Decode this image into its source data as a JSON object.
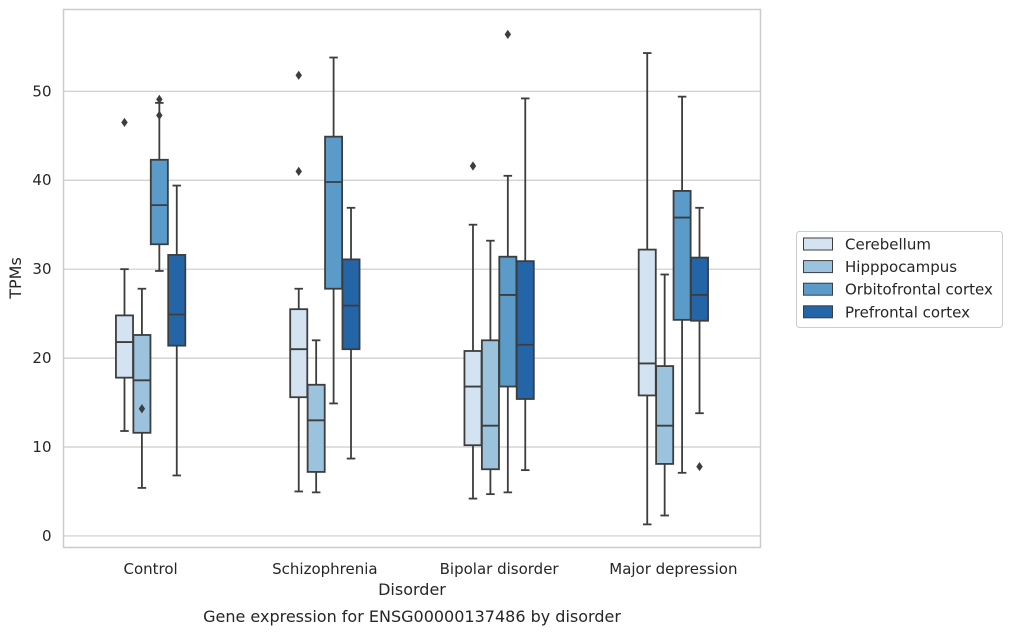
{
  "chart_data": {
    "type": "boxplot",
    "title": "",
    "caption": "Gene expression for ENSG00000137486 by disorder",
    "xlabel": "Disorder",
    "ylabel": "TPMs",
    "ylim": [
      -1.3,
      59.2
    ],
    "yticks": [
      0,
      10,
      20,
      30,
      40,
      50
    ],
    "grid": "horizontal",
    "legend_position": "right",
    "categories": [
      "Control",
      "Schizophrenia",
      "Bipolar disorder",
      "Major depression"
    ],
    "series": [
      {
        "name": "Cerebellum",
        "color": "#d3e3f2",
        "boxes": [
          {
            "whislo": 11.8,
            "q1": 17.8,
            "med": 21.8,
            "q3": 24.8,
            "whishi": 30.0,
            "fliers": [
              46.5
            ]
          },
          {
            "whislo": 5.0,
            "q1": 15.6,
            "med": 21.0,
            "q3": 25.5,
            "whishi": 27.8,
            "fliers": [
              51.8,
              41.0
            ]
          },
          {
            "whislo": 4.2,
            "q1": 10.2,
            "med": 16.8,
            "q3": 20.8,
            "whishi": 35.0,
            "fliers": [
              41.6
            ]
          },
          {
            "whislo": 1.3,
            "q1": 15.8,
            "med": 19.4,
            "q3": 32.2,
            "whishi": 54.3,
            "fliers": []
          }
        ]
      },
      {
        "name": "Hipppocampus",
        "color": "#9cc3dd",
        "boxes": [
          {
            "whislo": 5.4,
            "q1": 11.6,
            "med": 17.5,
            "q3": 22.6,
            "whishi": 27.8,
            "fliers": [
              14.3
            ]
          },
          {
            "whislo": 4.9,
            "q1": 7.2,
            "med": 13.0,
            "q3": 17.0,
            "whishi": 22.0,
            "fliers": []
          },
          {
            "whislo": 4.7,
            "q1": 7.5,
            "med": 12.4,
            "q3": 22.0,
            "whishi": 33.2,
            "fliers": []
          },
          {
            "whislo": 2.3,
            "q1": 8.1,
            "med": 12.4,
            "q3": 19.1,
            "whishi": 29.4,
            "fliers": []
          }
        ]
      },
      {
        "name": "Orbitofrontal cortex",
        "color": "#5a9bc9",
        "boxes": [
          {
            "whislo": 29.8,
            "q1": 32.8,
            "med": 37.2,
            "q3": 42.3,
            "whishi": 48.7,
            "fliers": [
              49.1,
              47.3
            ]
          },
          {
            "whislo": 14.9,
            "q1": 27.8,
            "med": 39.8,
            "q3": 44.9,
            "whishi": 53.8,
            "fliers": []
          },
          {
            "whislo": 4.9,
            "q1": 16.8,
            "med": 27.1,
            "q3": 31.4,
            "whishi": 40.5,
            "fliers": [
              56.4
            ]
          },
          {
            "whislo": 7.1,
            "q1": 24.3,
            "med": 35.8,
            "q3": 38.8,
            "whishi": 49.4,
            "fliers": []
          }
        ]
      },
      {
        "name": "Prefrontal cortex",
        "color": "#2465a8",
        "boxes": [
          {
            "whislo": 6.8,
            "q1": 21.4,
            "med": 24.9,
            "q3": 31.6,
            "whishi": 39.4,
            "fliers": []
          },
          {
            "whislo": 8.7,
            "q1": 21.0,
            "med": 25.9,
            "q3": 31.1,
            "whishi": 36.9,
            "fliers": []
          },
          {
            "whislo": 7.4,
            "q1": 15.4,
            "med": 21.5,
            "q3": 30.9,
            "whishi": 49.2,
            "fliers": []
          },
          {
            "whislo": 13.8,
            "q1": 24.2,
            "med": 27.1,
            "q3": 31.3,
            "whishi": 36.9,
            "fliers": [
              7.8
            ]
          }
        ]
      }
    ]
  }
}
